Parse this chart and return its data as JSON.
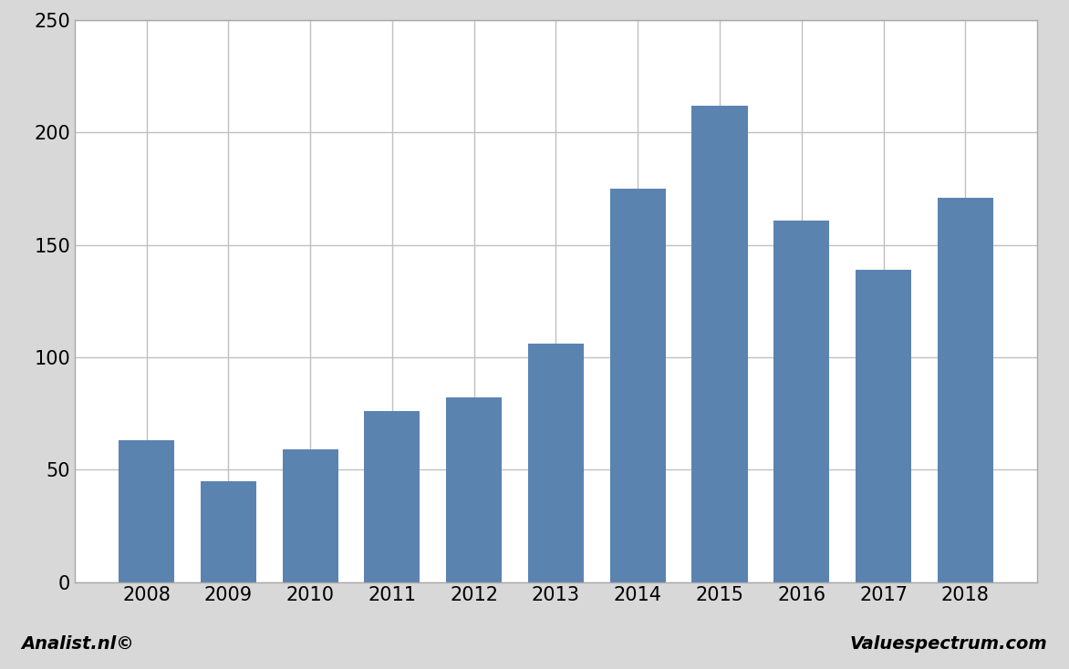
{
  "years": [
    2008,
    2009,
    2010,
    2011,
    2012,
    2013,
    2014,
    2015,
    2016,
    2017,
    2018
  ],
  "values": [
    63,
    45,
    59,
    76,
    82,
    106,
    175,
    212,
    161,
    139,
    171
  ],
  "bar_color": "#5b83b0",
  "ylim": [
    0,
    250
  ],
  "yticks": [
    0,
    50,
    100,
    150,
    200,
    250
  ],
  "background_color": "#d8d8d8",
  "plot_bg_color": "#ffffff",
  "grid_color": "#c0c0c0",
  "footer_left": "Analist.nl©",
  "footer_right": "Valuespectrum.com",
  "footer_fontsize": 14,
  "tick_fontsize": 15,
  "bar_width": 0.68
}
